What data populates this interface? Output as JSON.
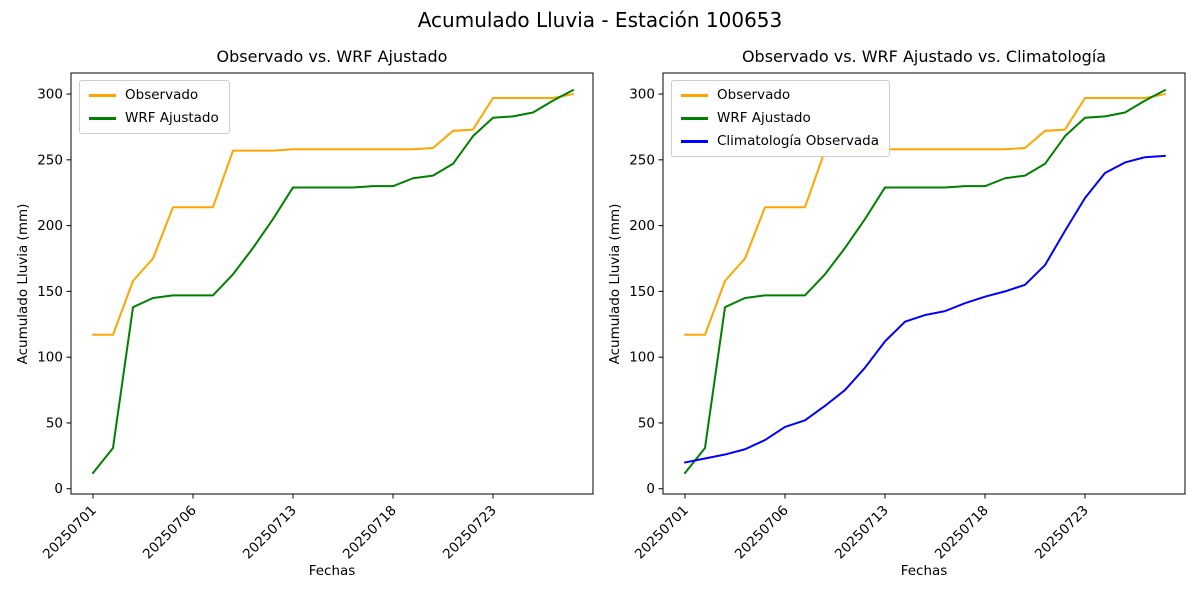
{
  "figure": {
    "suptitle": "Acumulado Lluvia - Estación 100653",
    "background": "#ffffff",
    "text_color": "#000000"
  },
  "chart_data": [
    {
      "type": "line",
      "title": "Observado vs. WRF Ajustado",
      "xlabel": "Fechas",
      "ylabel": "Acumulado Lluvia (mm)",
      "legend_position": "upper left",
      "grid": false,
      "ylim": [
        -4,
        316
      ],
      "yticks": [
        0,
        50,
        100,
        150,
        200,
        250,
        300
      ],
      "xtick_positions": [
        0,
        5,
        10,
        15,
        20
      ],
      "xtick_labels": [
        "20250701",
        "20250706",
        "20250713",
        "20250718",
        "20250723"
      ],
      "x_index": [
        0,
        1,
        2,
        3,
        4,
        5,
        6,
        7,
        8,
        9,
        10,
        11,
        12,
        13,
        14,
        15,
        16,
        17,
        18,
        19,
        20,
        21,
        22,
        23,
        24
      ],
      "series": [
        {
          "name": "Observado",
          "color": "#FFA500",
          "values": [
            117,
            117,
            158,
            175,
            214,
            214,
            214,
            257,
            257,
            257,
            258,
            258,
            258,
            258,
            258,
            258,
            258,
            259,
            272,
            273,
            297,
            297,
            297,
            297,
            300
          ]
        },
        {
          "name": "WRF Ajustado",
          "color": "#008000",
          "values": [
            12,
            31,
            138,
            145,
            147,
            147,
            147,
            163,
            183,
            205,
            229,
            229,
            229,
            229,
            230,
            230,
            236,
            238,
            247,
            268,
            282,
            283,
            286,
            295,
            303
          ]
        }
      ]
    },
    {
      "type": "line",
      "title": "Observado vs. WRF Ajustado vs. Climatología",
      "xlabel": "Fechas",
      "ylabel": "Acumulado Lluvia (mm)",
      "legend_position": "upper left",
      "grid": false,
      "ylim": [
        -4,
        316
      ],
      "yticks": [
        0,
        50,
        100,
        150,
        200,
        250,
        300
      ],
      "xtick_positions": [
        0,
        5,
        10,
        15,
        20
      ],
      "xtick_labels": [
        "20250701",
        "20250706",
        "20250713",
        "20250718",
        "20250723"
      ],
      "x_index": [
        0,
        1,
        2,
        3,
        4,
        5,
        6,
        7,
        8,
        9,
        10,
        11,
        12,
        13,
        14,
        15,
        16,
        17,
        18,
        19,
        20,
        21,
        22,
        23,
        24
      ],
      "series": [
        {
          "name": "Observado",
          "color": "#FFA500",
          "values": [
            117,
            117,
            158,
            175,
            214,
            214,
            214,
            257,
            257,
            257,
            258,
            258,
            258,
            258,
            258,
            258,
            258,
            259,
            272,
            273,
            297,
            297,
            297,
            297,
            300
          ]
        },
        {
          "name": "WRF Ajustado",
          "color": "#008000",
          "values": [
            12,
            31,
            138,
            145,
            147,
            147,
            147,
            163,
            183,
            205,
            229,
            229,
            229,
            229,
            230,
            230,
            236,
            238,
            247,
            268,
            282,
            283,
            286,
            295,
            303
          ]
        },
        {
          "name": "Climatología Observada",
          "color": "#0000FF",
          "values": [
            20,
            23,
            26,
            30,
            37,
            47,
            52,
            63,
            75,
            92,
            112,
            127,
            132,
            135,
            141,
            146,
            150,
            155,
            170,
            196,
            221,
            240,
            248,
            252,
            253
          ]
        }
      ]
    }
  ]
}
